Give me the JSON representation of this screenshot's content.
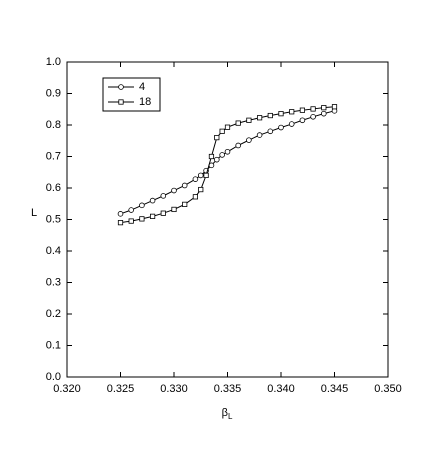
{
  "chart_data": {
    "type": "line",
    "xlabel": "β",
    "xlabel_subscript": "L",
    "ylabel": "L",
    "x": [
      0.325,
      0.326,
      0.327,
      0.328,
      0.329,
      0.33,
      0.331,
      0.332,
      0.3325,
      0.333,
      0.3335,
      0.334,
      0.3345,
      0.335,
      0.336,
      0.337,
      0.338,
      0.339,
      0.34,
      0.341,
      0.342,
      0.343,
      0.344,
      0.345
    ],
    "series": [
      {
        "name": "4",
        "color": "#000000",
        "marker": "circle",
        "values": [
          0.518,
          0.53,
          0.545,
          0.56,
          0.575,
          0.592,
          0.608,
          0.628,
          0.64,
          0.655,
          0.672,
          0.69,
          0.705,
          0.715,
          0.735,
          0.752,
          0.768,
          0.78,
          0.792,
          0.803,
          0.815,
          0.826,
          0.836,
          0.845
        ]
      },
      {
        "name": "18",
        "color": "#000000",
        "marker": "square",
        "values": [
          0.49,
          0.495,
          0.502,
          0.51,
          0.52,
          0.532,
          0.548,
          0.572,
          0.595,
          0.64,
          0.7,
          0.76,
          0.78,
          0.793,
          0.806,
          0.815,
          0.823,
          0.83,
          0.836,
          0.842,
          0.847,
          0.851,
          0.855,
          0.858
        ]
      }
    ],
    "xlim": [
      0.32,
      0.35
    ],
    "xticks": [
      {
        "value": 0.32,
        "label": "0.320"
      },
      0.325,
      {
        "value": 0.33,
        "label": "0.330"
      },
      0.335,
      {
        "value": 0.34,
        "label": "0.340"
      },
      0.345,
      {
        "value": 0.35,
        "label": "0.350"
      }
    ],
    "ylim": [
      0.0,
      1.0
    ],
    "yticks": [
      {
        "value": 0.0,
        "label": "0.0"
      },
      0.1,
      0.2,
      0.3,
      0.4,
      0.5,
      0.6,
      0.7,
      0.8,
      0.9,
      {
        "value": 1.0,
        "label": "1.0"
      }
    ],
    "grid": false,
    "legend": "upper left"
  }
}
